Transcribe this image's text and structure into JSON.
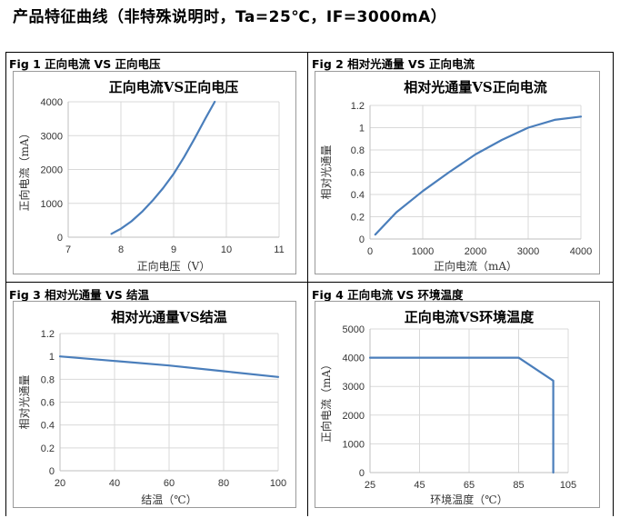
{
  "page_title": "产品特征曲线（非特殊说明时，Ta=25℃，IF=3000mA）",
  "figures": [
    {
      "label": "Fig 1  正向电流  VS  正向电压"
    },
    {
      "label": "Fig 2  相对光通量  VS  正向电流"
    },
    {
      "label": "Fig 3  相对光通量  VS  结温"
    },
    {
      "label": "Fig 4  正向电流  VS  环境温度"
    }
  ],
  "chart_data": [
    {
      "type": "line",
      "title": "正向电流VS正向电压",
      "xlabel": "正向电压（V）",
      "ylabel": "正向电流（mA）",
      "xlim": [
        7,
        11
      ],
      "ylim": [
        0,
        4000
      ],
      "xticks": [
        "7",
        "8",
        "9",
        "10",
        "11"
      ],
      "yticks": [
        "0",
        "1000",
        "2000",
        "3000",
        "4000"
      ],
      "grid": true,
      "color": "#4a7ebb",
      "series": [
        {
          "x": [
            7.82,
            8.0,
            8.2,
            8.4,
            8.6,
            8.8,
            9.0,
            9.2,
            9.4,
            9.6,
            9.78
          ],
          "y": [
            100,
            250,
            470,
            750,
            1080,
            1450,
            1870,
            2370,
            2920,
            3500,
            4000
          ]
        }
      ]
    },
    {
      "type": "line",
      "title": "相对光通量VS正向电流",
      "xlabel": "正向电流（mA）",
      "ylabel": "相对光通量",
      "xlim": [
        0,
        4000
      ],
      "ylim": [
        0,
        1.2
      ],
      "xticks": [
        "0",
        "1000",
        "2000",
        "3000",
        "4000"
      ],
      "yticks": [
        "0",
        "0.2",
        "0.4",
        "0.6",
        "0.8",
        "1",
        "1.2"
      ],
      "grid": true,
      "color": "#4a7ebb",
      "series": [
        {
          "x": [
            100,
            500,
            1000,
            1500,
            2000,
            2500,
            3000,
            3500,
            4000
          ],
          "y": [
            0.04,
            0.24,
            0.43,
            0.6,
            0.76,
            0.89,
            1.0,
            1.07,
            1.1
          ]
        }
      ]
    },
    {
      "type": "line",
      "title": "相对光通量VS结温",
      "xlabel": "结温（℃）",
      "ylabel": "相对光通量",
      "xlim": [
        20,
        100
      ],
      "ylim": [
        0,
        1.2
      ],
      "xticks": [
        "20",
        "40",
        "60",
        "80",
        "100"
      ],
      "yticks": [
        "0",
        "0.2",
        "0.4",
        "0.6",
        "0.8",
        "1",
        "1.2"
      ],
      "grid": true,
      "color": "#4a7ebb",
      "series": [
        {
          "x": [
            20,
            40,
            60,
            80,
            100
          ],
          "y": [
            1.0,
            0.96,
            0.92,
            0.87,
            0.82
          ]
        }
      ]
    },
    {
      "type": "line",
      "title": "正向电流VS环境温度",
      "xlabel": "环境温度（℃）",
      "ylabel": "正向电流（mA）",
      "xlim": [
        25,
        105
      ],
      "ylim": [
        0,
        5000
      ],
      "xticks": [
        "25",
        "45",
        "65",
        "85",
        "105"
      ],
      "yticks": [
        "0",
        "1000",
        "2000",
        "3000",
        "4000",
        "5000"
      ],
      "grid": true,
      "color": "#4a7ebb",
      "series": [
        {
          "x": [
            25,
            85,
            99,
            99
          ],
          "y": [
            4000,
            4000,
            3200,
            0
          ]
        }
      ]
    }
  ]
}
